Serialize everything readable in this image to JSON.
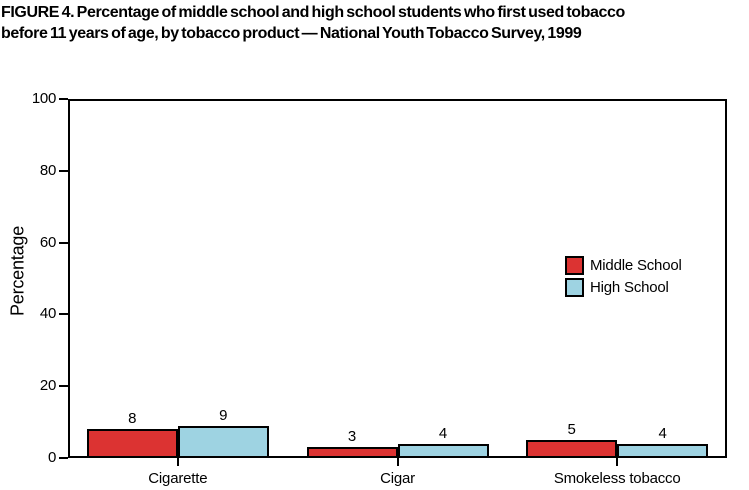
{
  "figure": {
    "title_line1": "FIGURE 4. Percentage of middle school and high school students who first used tobacco",
    "title_line2": "before 11 years of age, by tobacco product — National Youth Tobacco Survey, 1999"
  },
  "chart_data": {
    "type": "bar",
    "title": "FIGURE 4. Percentage of middle school and high school students who first used tobacco before 11 years of age, by tobacco product — National Youth Tobacco Survey, 1999",
    "categories": [
      "Cigarette",
      "Cigar",
      "Smokeless tobacco"
    ],
    "series": [
      {
        "name": "Middle School",
        "color": "#dc3332",
        "values": [
          8,
          3,
          5
        ]
      },
      {
        "name": "High School",
        "color": "#9ed3e2",
        "values": [
          9,
          4,
          4
        ]
      }
    ],
    "xlabel": "",
    "ylabel": "Percentage",
    "ylim": [
      0,
      100
    ],
    "yticks": [
      0,
      20,
      40,
      60,
      80,
      100
    ],
    "bar_value_labels": true,
    "grid": false,
    "legend_position": "center-right",
    "axis_color": "#000000",
    "background_color": "#ffffff"
  }
}
